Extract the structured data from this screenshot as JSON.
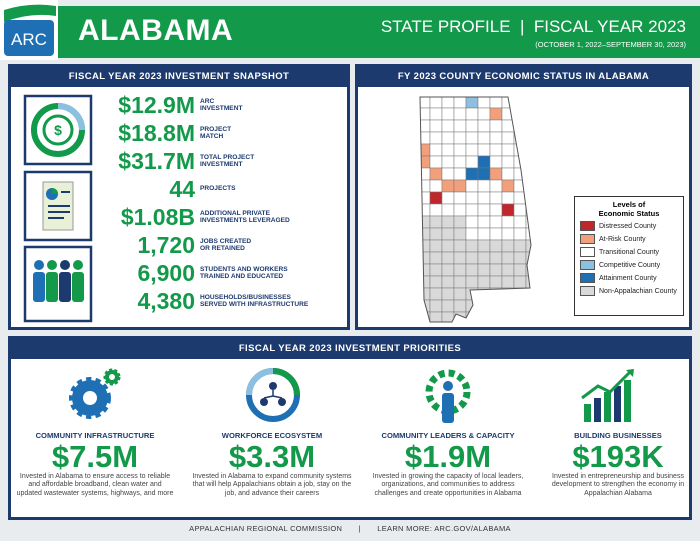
{
  "header": {
    "logo": "ARC",
    "title": "ALABAMA",
    "subtitle": "STATE PROFILE  |  FISCAL YEAR 2023",
    "dates": "(OCTOBER 1, 2022–SEPTEMBER 30, 2023)"
  },
  "snapshot": {
    "title": "FISCAL YEAR 2023 INVESTMENT SNAPSHOT",
    "stats": [
      {
        "value": "$12.9M",
        "label": [
          "ARC",
          "INVESTMENT"
        ]
      },
      {
        "value": "$18.8M",
        "label": [
          "PROJECT",
          "MATCH"
        ]
      },
      {
        "value": "$31.7M",
        "label": [
          "TOTAL PROJECT",
          "INVESTMENT"
        ]
      },
      {
        "value": "44",
        "label": [
          "PROJECTS"
        ]
      },
      {
        "value": "$1.08B",
        "label": [
          "ADDITIONAL PRIVATE",
          "INVESTMENTS LEVERAGED"
        ]
      },
      {
        "value": "1,720",
        "label": [
          "JOBS CREATED",
          "OR RETAINED"
        ]
      },
      {
        "value": "6,900",
        "label": [
          "STUDENTS AND WORKERS",
          "TRAINED AND EDUCATED"
        ]
      },
      {
        "value": "4,380",
        "label": [
          "HOUSEHOLDS/BUSINESSES",
          "SERVED WITH INFRASTRUCTURE"
        ]
      }
    ]
  },
  "map": {
    "title": "FY 2023 COUNTY ECONOMIC STATUS IN ALABAMA",
    "legend": {
      "title": "Levels of Economic Status",
      "items": [
        {
          "label": "Distressed County",
          "color": "#c0272d"
        },
        {
          "label": "At-Risk County",
          "color": "#f2a07b"
        },
        {
          "label": "Transitional County",
          "color": "#ffffff"
        },
        {
          "label": "Competitive County",
          "color": "#8dbfe0"
        },
        {
          "label": "Attainment County",
          "color": "#1f6fb4"
        },
        {
          "label": "Non-Appalachian County",
          "color": "#d9d9d9"
        }
      ]
    }
  },
  "priorities": {
    "title": "FISCAL YEAR 2023 INVESTMENT PRIORITIES",
    "items": [
      {
        "title": "COMMUNITY INFRASTRUCTURE",
        "value": "$7.5M",
        "description": "Invested in Alabama to ensure access to reliable and affordable broadband, clean water and updated wastewater systems, highways, and more"
      },
      {
        "title": "WORKFORCE ECOSYSTEM",
        "value": "$3.3M",
        "description": "Invested in Alabama to expand community systems that will help Appalachians obtain a job, stay on the job, and advance their careers"
      },
      {
        "title": "COMMUNITY LEADERS & CAPACITY",
        "value": "$1.9M",
        "description": "Invested in growing the capacity of local leaders, organizations, and communities to address challenges and create opportunities in Alabama"
      },
      {
        "title": "BUILDING BUSINESSES",
        "value": "$193K",
        "description": "Invested in entrepreneurship and business development to strengthen the economy in Appalachian Alabama"
      }
    ]
  },
  "footer": {
    "organization": "APPALACHIAN REGIONAL COMMISSION",
    "separator": "|",
    "link": "LEARN MORE: ARC.GOV/ALABAMA"
  }
}
